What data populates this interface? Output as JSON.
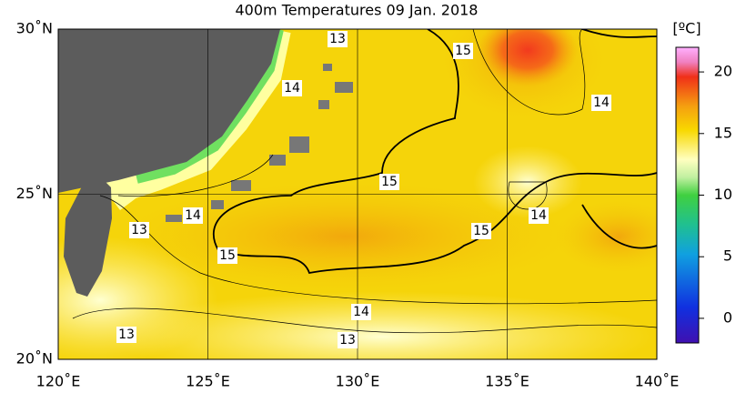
{
  "title": "400m Temperatures  09 Jan. 2018",
  "x_axis": {
    "ticks": [
      {
        "value": 120,
        "label": "120˚E"
      },
      {
        "value": 125,
        "label": "125˚E"
      },
      {
        "value": 130,
        "label": "130˚E"
      },
      {
        "value": 135,
        "label": "135˚E"
      },
      {
        "value": 140,
        "label": "140˚E"
      }
    ]
  },
  "y_axis": {
    "ticks": [
      {
        "value": 20,
        "label": "20˚N"
      },
      {
        "value": 25,
        "label": "25˚N"
      },
      {
        "value": 30,
        "label": "30˚N"
      }
    ]
  },
  "colorbar": {
    "unit": "[ºC]",
    "range": [
      -2,
      22
    ],
    "ticks": [
      0,
      5,
      10,
      15,
      20
    ]
  },
  "contour_labels": [
    13,
    15,
    14,
    14,
    15,
    14,
    13,
    14,
    15,
    15,
    14,
    13,
    13
  ]
}
